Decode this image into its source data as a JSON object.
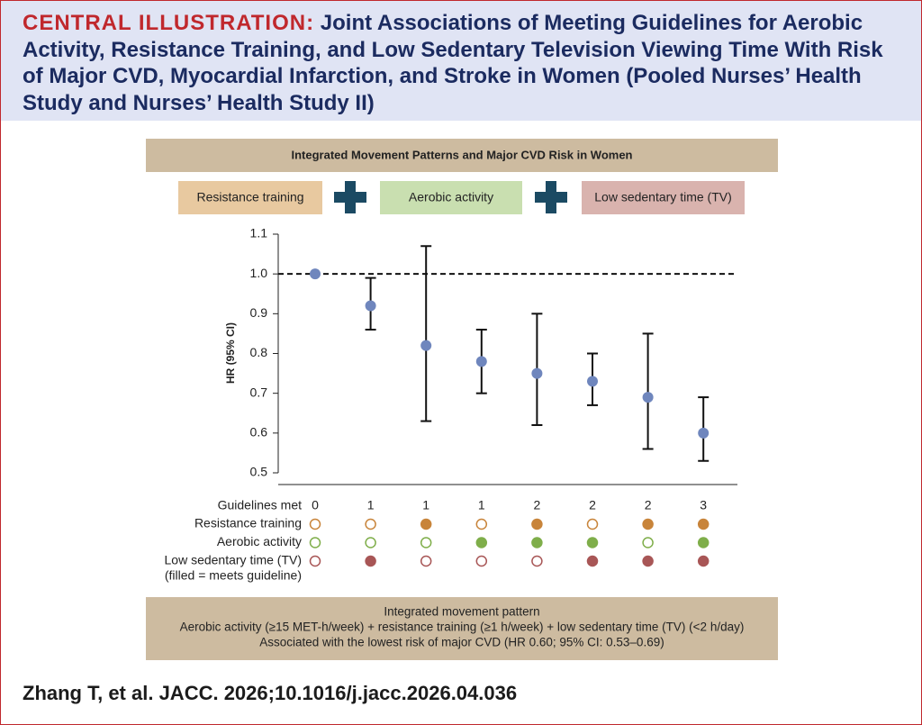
{
  "header": {
    "label": "CENTRAL ILLUSTRATION:",
    "title": "Joint Associations of Meeting Guidelines for Aerobic Activity, Resistance Training, and Low Sedentary Television Viewing Time With Risk of Major CVD, Myocardial Infarction, and Stroke in Women (Pooled Nurses’ Health Study and Nurses’ Health Study II)"
  },
  "panel": {
    "title": "Integrated Movement Patterns and Major CVD Risk in Women",
    "boxes": [
      {
        "text": "Resistance training",
        "color": "#e8c9a0"
      },
      {
        "text": "Aerobic activity",
        "color": "#c9dfb0"
      },
      {
        "text": "Low sedentary time (TV)",
        "color": "#d9b3ae"
      }
    ]
  },
  "chart_data": {
    "type": "errorbar",
    "ylabel": "HR (95% CI)",
    "xlabel": "Guidelines met",
    "categories": [
      "0",
      "1",
      "1",
      "1",
      "2",
      "2",
      "2",
      "3"
    ],
    "values": [
      1.0,
      0.92,
      0.82,
      0.78,
      0.75,
      0.73,
      0.69,
      0.6
    ],
    "ci_low": [
      null,
      0.86,
      0.63,
      0.7,
      0.62,
      0.67,
      0.56,
      0.53
    ],
    "ci_high": [
      null,
      0.99,
      1.07,
      0.86,
      0.9,
      0.8,
      0.85,
      0.69
    ],
    "color": "#6f86bd",
    "ref_line": 1,
    "ylim": [
      0.5,
      1.1
    ],
    "yticks": [
      0.5,
      0.6,
      0.7,
      0.8,
      0.9,
      {
        "value": 1,
        "label": "1.0"
      },
      1.1
    ],
    "indicators": [
      {
        "name": "Resistance training",
        "color": "#c8843a",
        "values": [
          false,
          false,
          true,
          false,
          true,
          false,
          true,
          true
        ]
      },
      {
        "name": "Aerobic activity",
        "color": "#7fae4a",
        "values": [
          false,
          false,
          false,
          true,
          true,
          true,
          false,
          true
        ]
      },
      {
        "name": "Low sedentary time (TV)",
        "color": "#a85656",
        "values": [
          false,
          true,
          false,
          false,
          false,
          true,
          true,
          true
        ]
      }
    ],
    "indicator_note": "(filled = meets guideline)"
  },
  "footer_box": [
    "Integrated movement pattern",
    "Aerobic activity (≥15 MET-h/week) + resistance training (≥1 h/week) + low sedentary time (TV) (<2 h/day)",
    "Associated with the lowest risk of major CVD (HR 0.60; 95% CI: 0.53–0.69)"
  ],
  "citation": "Zhang T, et al. JACC. 2026;10.1016/j.jacc.2026.04.036"
}
